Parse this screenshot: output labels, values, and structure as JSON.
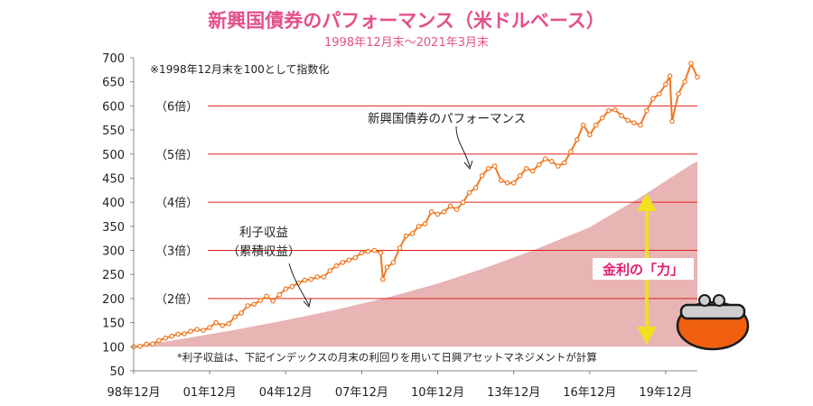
{
  "title": "新興国債券のパフォーマンス（米ドルベース）",
  "subtitle": "1998年12月末〜2021年3月末",
  "note_top": "※1998年12月末を100として指数化",
  "note_bottom": "*利子収益は、下記インデックスの月末の利回りを用いて日興アセットマネジメントが計算",
  "series_label": "新興国債券のパフォーマンス",
  "area_label_lines": [
    "利子収益",
    "（累積収益）"
  ],
  "power_label": "金利の「力」",
  "colors": {
    "title": "#e4508a",
    "line": "#f07820",
    "area": "#e8b4b4",
    "multiple_line": "#e02020",
    "arrow": "#f0e020",
    "power_text": "#e02070",
    "axis": "#888888",
    "wallet": "#f06010"
  },
  "icons": [
    "wallet-icon",
    "double-arrow-icon"
  ],
  "chart_data": {
    "type": "line",
    "ylim": [
      50,
      700
    ],
    "yticks": [
      50,
      100,
      150,
      200,
      250,
      300,
      350,
      400,
      450,
      500,
      550,
      600,
      650,
      700
    ],
    "xlim": [
      "1998-12",
      "2021-03"
    ],
    "xticks": [
      {
        "date": "1998-12",
        "label": "98年12月"
      },
      {
        "date": "2001-12",
        "label": "01年12月"
      },
      {
        "date": "2004-12",
        "label": "04年12月"
      },
      {
        "date": "2007-12",
        "label": "07年12月"
      },
      {
        "date": "2010-12",
        "label": "10年12月"
      },
      {
        "date": "2013-12",
        "label": "13年12月"
      },
      {
        "date": "2016-12",
        "label": "16年12月"
      },
      {
        "date": "2019-12",
        "label": "19年12月"
      }
    ],
    "multiples": [
      {
        "value": 200,
        "label": "（2倍）"
      },
      {
        "value": 300,
        "label": "（3倍）"
      },
      {
        "value": 400,
        "label": "（4倍）"
      },
      {
        "value": 500,
        "label": "（5倍）"
      },
      {
        "value": 600,
        "label": "（6倍）"
      }
    ],
    "series": [
      {
        "name": "新興国債券のパフォーマンス",
        "type": "line",
        "points": [
          [
            "1998-12",
            100
          ],
          [
            "1999-03",
            101
          ],
          [
            "1999-06",
            105
          ],
          [
            "1999-09",
            106
          ],
          [
            "1999-12",
            113
          ],
          [
            "2000-03",
            118
          ],
          [
            "2000-06",
            122
          ],
          [
            "2000-09",
            126
          ],
          [
            "2000-12",
            127
          ],
          [
            "2001-03",
            132
          ],
          [
            "2001-06",
            136
          ],
          [
            "2001-09",
            134
          ],
          [
            "2001-12",
            140
          ],
          [
            "2002-03",
            150
          ],
          [
            "2002-06",
            144
          ],
          [
            "2002-09",
            148
          ],
          [
            "2002-12",
            162
          ],
          [
            "2003-03",
            170
          ],
          [
            "2003-06",
            185
          ],
          [
            "2003-09",
            188
          ],
          [
            "2003-12",
            196
          ],
          [
            "2004-03",
            205
          ],
          [
            "2004-06",
            195
          ],
          [
            "2004-09",
            208
          ],
          [
            "2004-12",
            220
          ],
          [
            "2005-03",
            225
          ],
          [
            "2005-06",
            232
          ],
          [
            "2005-09",
            238
          ],
          [
            "2005-12",
            240
          ],
          [
            "2006-03",
            245
          ],
          [
            "2006-06",
            245
          ],
          [
            "2006-09",
            258
          ],
          [
            "2006-12",
            268
          ],
          [
            "2007-03",
            275
          ],
          [
            "2007-06",
            280
          ],
          [
            "2007-09",
            285
          ],
          [
            "2007-12",
            295
          ],
          [
            "2008-03",
            298
          ],
          [
            "2008-06",
            300
          ],
          [
            "2008-09",
            295
          ],
          [
            "2008-10",
            240
          ],
          [
            "2008-12",
            265
          ],
          [
            "2009-03",
            275
          ],
          [
            "2009-06",
            305
          ],
          [
            "2009-09",
            330
          ],
          [
            "2009-12",
            335
          ],
          [
            "2010-03",
            350
          ],
          [
            "2010-06",
            355
          ],
          [
            "2010-09",
            380
          ],
          [
            "2010-12",
            375
          ],
          [
            "2011-03",
            380
          ],
          [
            "2011-06",
            392
          ],
          [
            "2011-09",
            385
          ],
          [
            "2011-12",
            400
          ],
          [
            "2012-03",
            420
          ],
          [
            "2012-06",
            430
          ],
          [
            "2012-09",
            455
          ],
          [
            "2012-12",
            470
          ],
          [
            "2013-03",
            475
          ],
          [
            "2013-06",
            445
          ],
          [
            "2013-09",
            440
          ],
          [
            "2013-12",
            440
          ],
          [
            "2014-03",
            455
          ],
          [
            "2014-06",
            470
          ],
          [
            "2014-09",
            465
          ],
          [
            "2014-12",
            478
          ],
          [
            "2015-03",
            490
          ],
          [
            "2015-06",
            485
          ],
          [
            "2015-09",
            475
          ],
          [
            "2015-12",
            482
          ],
          [
            "2016-03",
            505
          ],
          [
            "2016-06",
            530
          ],
          [
            "2016-09",
            560
          ],
          [
            "2016-12",
            540
          ],
          [
            "2017-03",
            560
          ],
          [
            "2017-06",
            575
          ],
          [
            "2017-09",
            590
          ],
          [
            "2017-12",
            592
          ],
          [
            "2018-03",
            580
          ],
          [
            "2018-06",
            570
          ],
          [
            "2018-09",
            565
          ],
          [
            "2018-12",
            560
          ],
          [
            "2019-03",
            590
          ],
          [
            "2019-06",
            615
          ],
          [
            "2019-09",
            625
          ],
          [
            "2019-12",
            645
          ],
          [
            "2020-02",
            662
          ],
          [
            "2020-03",
            568
          ],
          [
            "2020-06",
            625
          ],
          [
            "2020-09",
            650
          ],
          [
            "2020-12",
            688
          ],
          [
            "2021-03",
            660
          ]
        ]
      },
      {
        "name": "利子収益（累積収益）",
        "type": "area",
        "points": [
          [
            "1998-12",
            100
          ],
          [
            "2000-12",
            117
          ],
          [
            "2002-12",
            135
          ],
          [
            "2004-12",
            155
          ],
          [
            "2006-12",
            177
          ],
          [
            "2008-12",
            202
          ],
          [
            "2010-12",
            231
          ],
          [
            "2012-12",
            266
          ],
          [
            "2014-12",
            305
          ],
          [
            "2016-12",
            348
          ],
          [
            "2018-12",
            410
          ],
          [
            "2020-12",
            478
          ],
          [
            "2021-03",
            485
          ]
        ]
      }
    ]
  }
}
